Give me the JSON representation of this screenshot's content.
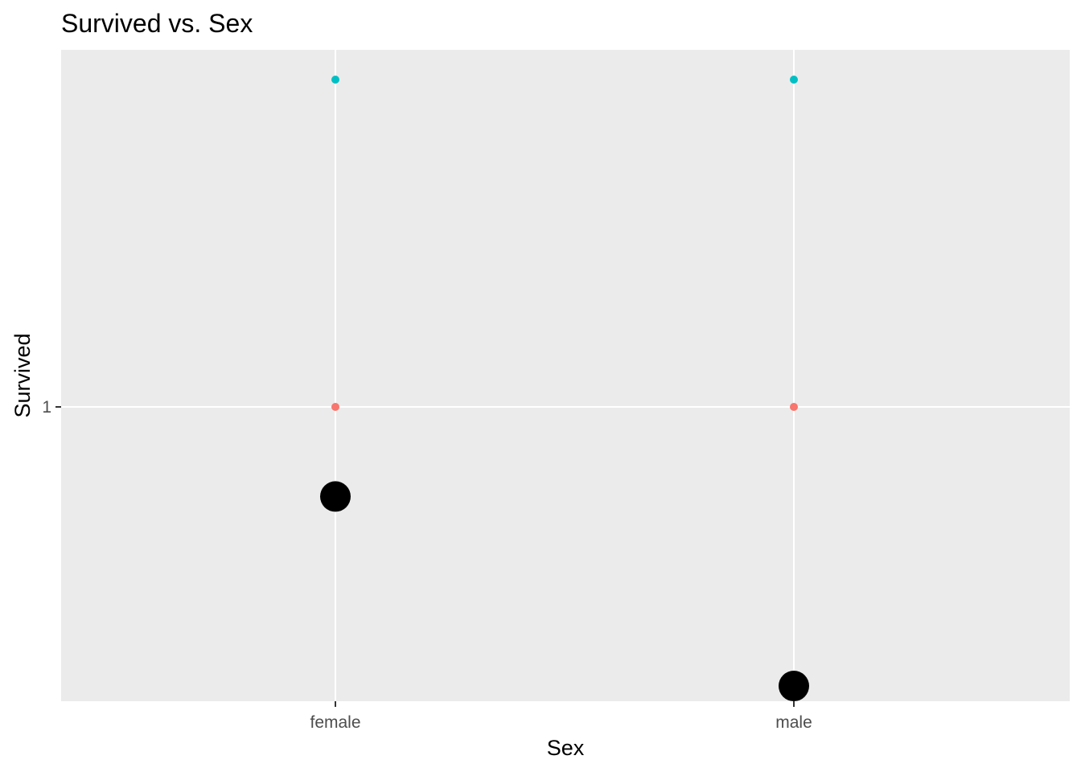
{
  "chart_data": {
    "type": "scatter",
    "title": "Survived vs. Sex",
    "xlabel": "Sex",
    "ylabel": "Survived",
    "categories": [
      "female",
      "male"
    ],
    "y_ticks": [
      {
        "value": 1,
        "label": "1"
      }
    ],
    "ylim": [
      0.1,
      2.0
    ],
    "grid": true,
    "legend": "none",
    "panel_background": "#EBEBEB",
    "series": [
      {
        "color": "#F8766D",
        "size": "small",
        "points": [
          {
            "x": "female",
            "y": 1
          },
          {
            "x": "male",
            "y": 1
          }
        ]
      },
      {
        "color": "#00BFC4",
        "size": "small",
        "points": [
          {
            "x": "female",
            "y": 1.95
          },
          {
            "x": "male",
            "y": 1.95
          }
        ]
      },
      {
        "color": "#000000",
        "size": "large",
        "points": [
          {
            "x": "female",
            "y": 0.74
          },
          {
            "x": "male",
            "y": 0.19
          }
        ]
      }
    ]
  }
}
